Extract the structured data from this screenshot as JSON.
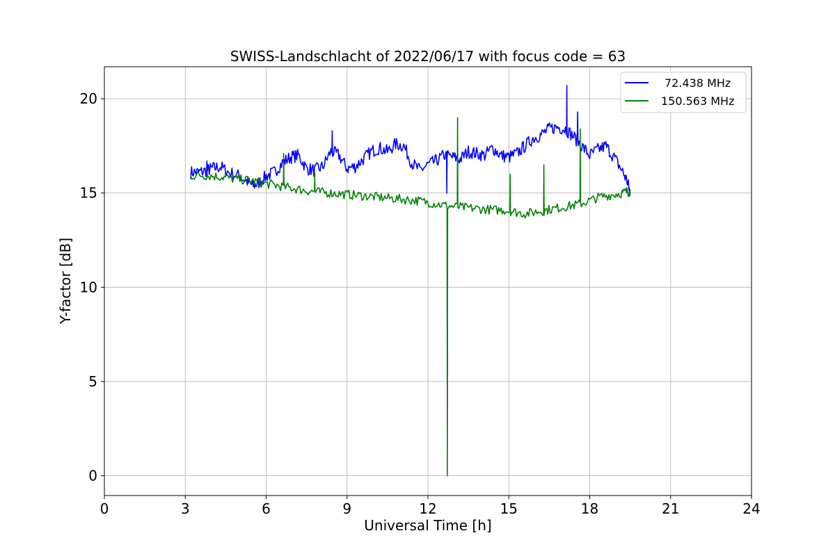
{
  "chart_data": {
    "type": "line",
    "title": "SWISS-Landschlacht of 2022/06/17 with focus code = 63",
    "xlabel": "Universal Time [h]",
    "ylabel": "Y-factor [dB]",
    "xlim": [
      0,
      24
    ],
    "ylim": [
      -1.05,
      21.7
    ],
    "xticks": [
      0,
      3,
      6,
      9,
      12,
      15,
      18,
      21,
      24
    ],
    "yticks": [
      0,
      5,
      10,
      15,
      20
    ],
    "grid": true,
    "legend_position": "top-right",
    "series": [
      {
        "name": "72.438 MHz",
        "color": "#0000ff",
        "x": [
          3.2,
          3.5,
          3.8,
          4.0,
          4.3,
          4.6,
          5.0,
          5.3,
          5.5,
          5.7,
          6.0,
          6.3,
          6.6,
          6.9,
          7.2,
          7.5,
          7.8,
          8.1,
          8.4,
          8.7,
          9.0,
          9.3,
          9.6,
          9.9,
          10.2,
          10.5,
          10.8,
          11.1,
          11.4,
          11.7,
          12.0,
          12.3,
          12.6,
          12.9,
          13.2,
          13.5,
          13.8,
          14.1,
          14.4,
          14.7,
          15.0,
          15.3,
          15.6,
          15.9,
          16.2,
          16.5,
          16.8,
          17.1,
          17.4,
          17.7,
          18.0,
          18.3,
          18.6,
          18.9,
          19.2,
          19.4,
          19.5
        ],
        "y": [
          16.1,
          16.1,
          16.2,
          16.3,
          16.4,
          16.1,
          15.9,
          15.6,
          15.4,
          15.5,
          15.9,
          16.1,
          16.6,
          16.9,
          17.0,
          16.3,
          16.2,
          16.4,
          17.2,
          17.0,
          16.3,
          16.4,
          16.8,
          17.2,
          17.4,
          17.2,
          17.6,
          17.5,
          16.6,
          16.2,
          16.5,
          16.7,
          17.0,
          16.9,
          16.8,
          17.2,
          17.1,
          17.0,
          17.4,
          17.0,
          16.9,
          17.1,
          17.5,
          17.9,
          18.1,
          18.4,
          18.5,
          18.4,
          18.0,
          17.5,
          17.0,
          17.3,
          17.5,
          16.9,
          16.2,
          15.6,
          15.0
        ],
        "spikes": [
          [
            3.8,
            16.7
          ],
          [
            8.45,
            18.3
          ],
          [
            12.7,
            15.0
          ],
          [
            17.15,
            20.7
          ],
          [
            17.55,
            19.3
          ]
        ]
      },
      {
        "name": "150.563 MHz",
        "color": "#008000",
        "x": [
          3.2,
          3.6,
          4.0,
          4.4,
          4.8,
          5.2,
          5.6,
          6.0,
          6.4,
          6.8,
          7.2,
          7.6,
          8.0,
          8.4,
          8.8,
          9.2,
          9.6,
          10.0,
          10.4,
          10.8,
          11.2,
          11.6,
          12.0,
          12.4,
          12.8,
          13.2,
          13.6,
          14.0,
          14.4,
          14.8,
          15.2,
          15.6,
          16.0,
          16.4,
          16.8,
          17.2,
          17.6,
          18.0,
          18.4,
          18.8,
          19.2,
          19.4,
          19.5
        ],
        "y": [
          15.9,
          15.95,
          15.9,
          15.85,
          15.75,
          15.7,
          15.6,
          15.5,
          15.4,
          15.3,
          15.2,
          15.1,
          15.05,
          15.0,
          14.95,
          14.9,
          14.85,
          14.8,
          14.75,
          14.7,
          14.65,
          14.6,
          14.5,
          14.4,
          14.3,
          14.25,
          14.2,
          14.15,
          14.1,
          14.1,
          14.0,
          13.9,
          14.0,
          14.1,
          14.2,
          14.3,
          14.4,
          14.6,
          14.8,
          14.9,
          15.0,
          15.1,
          15.0
        ],
        "spikes": [
          [
            6.65,
            17.1
          ],
          [
            7.8,
            16.1
          ],
          [
            12.72,
            0.0
          ],
          [
            13.1,
            19.0
          ],
          [
            15.05,
            16.0
          ],
          [
            16.3,
            16.5
          ],
          [
            17.65,
            18.4
          ]
        ]
      }
    ]
  }
}
